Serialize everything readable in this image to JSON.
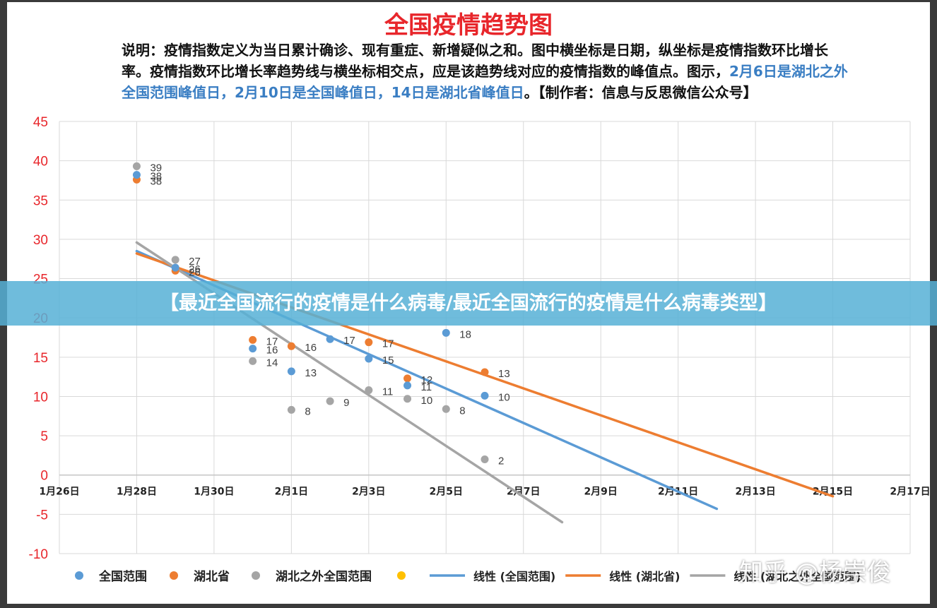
{
  "chart_data": {
    "type": "scatter",
    "title": "全国疫情趋势图",
    "description": {
      "part1": "说明：疫情指数定义为当日累计确诊、现有重症、新增疑似之和。图中横坐标是日期，纵坐标是疫情指数环比增长率。疫情指数环比增长率趋势线与横坐标相交点，应是该趋势线对应的疫情指数的峰值点。图示，",
      "highlight": "2月6日是湖北之外全国范围峰值日，2月10日是全国峰值日，14日是湖北省峰值日",
      "part2": "。【制作者：信息与反思微信公众号】"
    },
    "x_tick_labels": [
      "1月26日",
      "1月28日",
      "1月30日",
      "2月1日",
      "2月3日",
      "2月5日",
      "2月7日",
      "2月9日",
      "2月11日",
      "2月13日",
      "2月15日",
      "2月17日"
    ],
    "ylim": [
      -10,
      45
    ],
    "y_ticks": [
      45,
      40,
      35,
      30,
      25,
      20,
      15,
      10,
      5,
      0,
      -5,
      -10
    ],
    "grid": true,
    "legend_position": "bottom",
    "series": [
      {
        "name": "全国范围",
        "color": "#5b9bd5",
        "points": [
          [
            2,
            38.2
          ],
          [
            3,
            26.4
          ],
          [
            5,
            16.1
          ],
          [
            6,
            13.2
          ],
          [
            7,
            17.3
          ],
          [
            8,
            14.8
          ],
          [
            9,
            11.4
          ],
          [
            10,
            18.1
          ],
          [
            11,
            10.1
          ]
        ],
        "labels": [
          "38",
          "26",
          "16",
          "13",
          "17",
          "15",
          "11",
          "18",
          "10"
        ]
      },
      {
        "name": "湖北省",
        "color": "#ed7d31",
        "points": [
          [
            2,
            37.6
          ],
          [
            3,
            26.0
          ],
          [
            5,
            17.2
          ],
          [
            6,
            16.4
          ],
          [
            8,
            16.9
          ],
          [
            9,
            12.3
          ],
          [
            11,
            13.1
          ]
        ],
        "labels": [
          "38",
          "26",
          "17",
          "16",
          "17",
          "12",
          "13"
        ]
      },
      {
        "name": "湖北之外全国范围",
        "color": "#a5a5a5",
        "points": [
          [
            2,
            39.3
          ],
          [
            3,
            27.4
          ],
          [
            5,
            14.5
          ],
          [
            6,
            8.3
          ],
          [
            7,
            9.4
          ],
          [
            8,
            10.8
          ],
          [
            9,
            9.7
          ],
          [
            10,
            8.4
          ],
          [
            11,
            2.0
          ]
        ],
        "labels": [
          "39",
          "27",
          "14",
          "8",
          "9",
          "11",
          "10",
          "8",
          "2"
        ]
      },
      {
        "name": "",
        "color": "#ffc000",
        "points": [],
        "labels": []
      }
    ],
    "trendlines": [
      {
        "name": "线性 (全国范围)",
        "color": "#5b9bd5",
        "from": [
          2,
          28.5
        ],
        "to": [
          17,
          -4.3
        ]
      },
      {
        "name": "线性 (湖北省)",
        "color": "#ed7d31",
        "from": [
          2,
          28.2
        ],
        "to": [
          20,
          -2.7
        ]
      },
      {
        "name": "线性 (湖北之外全国范围)",
        "color": "#a5a5a5",
        "from": [
          2,
          29.6
        ],
        "to": [
          13,
          -6.0
        ]
      }
    ]
  },
  "banner": {
    "text": "【最近全国流行的疫情是什么病毒/最近全国流行的疫情是什么病毒类型】"
  },
  "watermark": {
    "text": "知乎 @杨崇俊"
  }
}
